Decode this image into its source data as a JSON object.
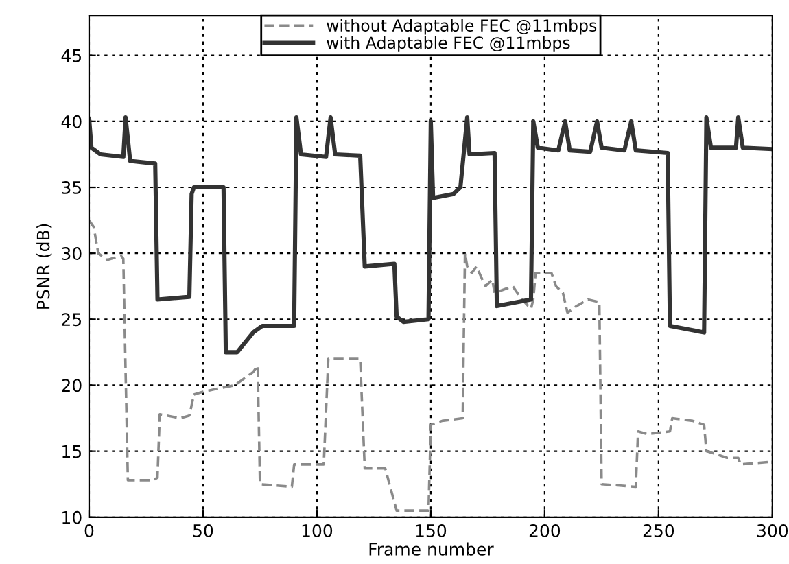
{
  "chart_data": {
    "type": "line",
    "xlabel": "Frame number",
    "ylabel": "PSNR (dB)",
    "xlim": [
      0,
      300
    ],
    "ylim": [
      10,
      48
    ],
    "xticks": [
      0,
      50,
      100,
      150,
      200,
      250,
      300
    ],
    "yticks": [
      10,
      15,
      20,
      25,
      30,
      35,
      40,
      45
    ],
    "grid": true,
    "legend": "top",
    "marker": "none",
    "series": [
      {
        "name": "without Adaptable FEC @11mbps",
        "color": "#8a8a8a",
        "line_style": "dashed",
        "x": [
          0,
          2,
          4,
          8,
          14,
          15,
          16,
          17,
          28,
          30,
          31,
          40,
          44,
          45,
          46,
          50,
          58,
          64,
          72,
          74,
          75,
          89,
          90,
          103,
          105,
          119,
          120,
          121,
          130,
          135,
          149,
          150,
          155,
          164,
          165,
          166,
          168,
          170,
          174,
          177,
          178,
          186,
          190,
          194,
          195,
          196,
          203,
          205,
          208,
          210,
          214,
          219,
          224,
          225,
          240,
          241,
          245,
          255,
          256,
          265,
          270,
          271,
          275,
          280,
          285,
          286,
          300
        ],
        "values": [
          32.5,
          32,
          30,
          29.5,
          29.8,
          29.6,
          21,
          12.8,
          12.8,
          13,
          17.8,
          17.5,
          17.7,
          18.5,
          19.3,
          19.5,
          19.8,
          20,
          21,
          21.5,
          12.5,
          12.3,
          14,
          14,
          22,
          22,
          17.8,
          13.7,
          13.7,
          10.5,
          10.5,
          17,
          17.3,
          17.5,
          30,
          29,
          28.5,
          29,
          27.5,
          28,
          27,
          27.5,
          26.5,
          25.8,
          26.5,
          28.5,
          28.5,
          27.5,
          27,
          25.5,
          26,
          26.5,
          26.3,
          12.5,
          12.3,
          16.5,
          16.3,
          16.5,
          17.5,
          17.3,
          17,
          15,
          14.8,
          14.5,
          14.5,
          14,
          14.2
        ]
      },
      {
        "name": "with Adaptable FEC @11mbps",
        "color": "#333333",
        "line_style": "solid",
        "x": [
          0,
          1,
          5,
          15,
          16,
          18,
          29,
          30,
          44,
          45,
          46,
          59,
          60,
          65,
          72,
          76,
          90,
          91,
          93,
          104,
          106,
          108,
          119,
          121,
          134,
          135,
          138,
          149,
          150,
          151,
          160,
          163,
          166,
          167,
          178,
          179,
          194,
          195,
          197,
          206,
          209,
          211,
          220,
          223,
          225,
          235,
          238,
          240,
          254,
          255,
          270,
          271,
          273,
          284,
          285,
          287,
          300
        ],
        "values": [
          40.2,
          38,
          37.5,
          37.3,
          40.3,
          37,
          36.8,
          26.5,
          26.7,
          34.5,
          35,
          35,
          22.5,
          22.5,
          24,
          24.5,
          24.5,
          40.3,
          37.5,
          37.3,
          40.3,
          37.5,
          37.4,
          29,
          29.2,
          25.2,
          24.8,
          25,
          40,
          34.2,
          34.5,
          35,
          40.3,
          37.5,
          37.6,
          26,
          26.5,
          40,
          38,
          37.8,
          40,
          37.8,
          37.7,
          40,
          38,
          37.8,
          40,
          37.8,
          37.6,
          24.5,
          24,
          40.3,
          38,
          38,
          40.3,
          38,
          37.9
        ]
      }
    ]
  }
}
